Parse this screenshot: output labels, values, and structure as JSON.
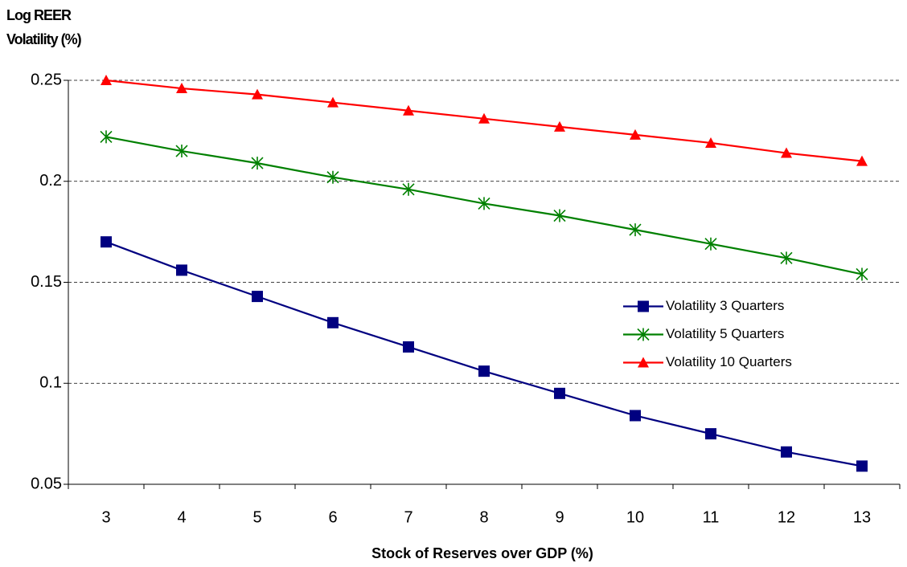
{
  "chart_data": {
    "type": "line",
    "y_label": "Log REER Volatility (%)",
    "x_label": "Stock of Reserves over GDP (%)",
    "categories": [
      "3",
      "4",
      "5",
      "6",
      "7",
      "8",
      "9",
      "10",
      "11",
      "12",
      "13"
    ],
    "series": [
      {
        "name": "Volatility 3 Quarters",
        "color": "#000080",
        "marker": "square",
        "values": [
          0.17,
          0.156,
          0.143,
          0.13,
          0.118,
          0.106,
          0.095,
          0.084,
          0.075,
          0.066,
          0.059
        ]
      },
      {
        "name": "Volatility 5 Quarters",
        "color": "#008000",
        "marker": "asterisk",
        "values": [
          0.222,
          0.215,
          0.209,
          0.202,
          0.196,
          0.189,
          0.183,
          0.176,
          0.169,
          0.162,
          0.154
        ]
      },
      {
        "name": "Volatility 10 Quarters",
        "color": "#ff0000",
        "marker": "triangle",
        "values": [
          0.25,
          0.246,
          0.243,
          0.239,
          0.235,
          0.231,
          0.227,
          0.223,
          0.219,
          0.214,
          0.21
        ]
      }
    ],
    "ylim": [
      0.05,
      0.25
    ],
    "yticks": [
      0.05,
      0.1,
      0.15,
      0.2,
      0.25
    ],
    "grid": true,
    "legend": "center right"
  }
}
